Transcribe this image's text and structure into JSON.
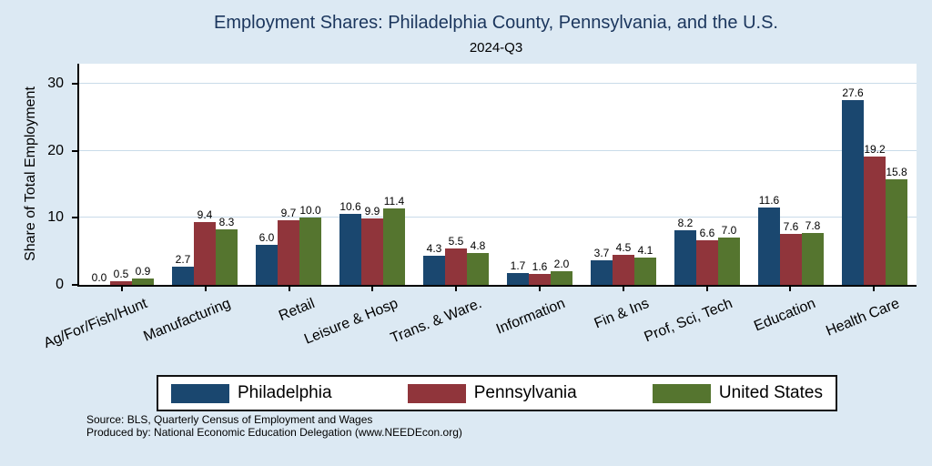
{
  "colors": {
    "background": "#dce9f3",
    "plot_background": "#ffffff",
    "title_text": "#1b365d",
    "philadelphia": "#1a476f",
    "pennsylvania": "#90353b",
    "united_states": "#55752f"
  },
  "source": {
    "line1": "Source: BLS, Quarterly Census of Employment and Wages",
    "line2": "Produced by: National Economic Education Delegation (www.NEEDEcon.org)"
  },
  "chart_data": {
    "type": "bar",
    "title": "Employment Shares: Philadelphia County, Pennsylvania, and the U.S.",
    "subtitle": "2024-Q3",
    "ylabel": "Share of Total Employment",
    "xlabel": "",
    "categories": [
      "Ag/For/Fish/Hunt",
      "Manufacturing",
      "Retail",
      "Leisure & Hosp",
      "Trans. & Ware.",
      "Information",
      "Fin & Ins",
      "Prof, Sci, Tech",
      "Education",
      "Health Care"
    ],
    "series": [
      {
        "name": "Philadelphia",
        "color": "#1a476f",
        "values": [
          0.0,
          2.7,
          6.0,
          10.6,
          4.3,
          1.7,
          3.7,
          8.2,
          11.6,
          27.6
        ]
      },
      {
        "name": "Pennsylvania",
        "color": "#90353b",
        "values": [
          0.5,
          9.4,
          9.7,
          9.9,
          5.5,
          1.6,
          4.5,
          6.6,
          7.6,
          19.2
        ]
      },
      {
        "name": "United States",
        "color": "#55752f",
        "values": [
          0.9,
          8.3,
          10.0,
          11.4,
          4.8,
          2.0,
          4.1,
          7.0,
          7.8,
          15.8
        ]
      }
    ],
    "yticks": [
      0,
      10,
      20,
      30
    ],
    "ylim": [
      0,
      33
    ],
    "grid": true,
    "legend_position": "bottom",
    "value_labels_decimals": 1
  }
}
